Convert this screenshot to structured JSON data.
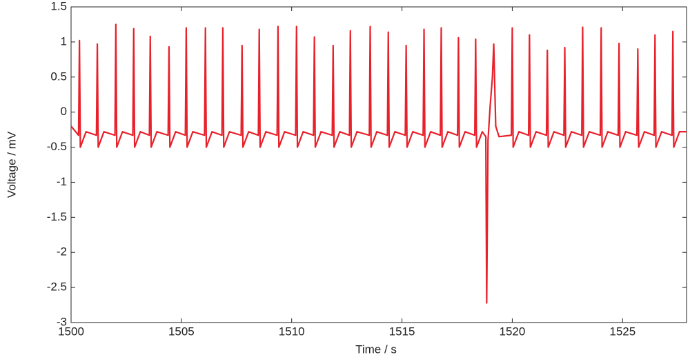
{
  "chart_data": {
    "type": "line",
    "x_label": "Time / s",
    "y_label": "Voltage / mV",
    "color": "#e8202a",
    "xlim": [
      1500,
      1527.9
    ],
    "ylim": [
      -3,
      1.5
    ],
    "xticks": [
      1500,
      1505,
      1510,
      1515,
      1520,
      1525
    ],
    "yticks": [
      1.5,
      1,
      0.5,
      0,
      -0.5,
      -1,
      -1.5,
      -2,
      -2.5,
      -3
    ],
    "x": [
      1500,
      1500.34,
      1500.38,
      1500.42,
      1500.68,
      1501.15,
      1501.19,
      1501.23,
      1501.49,
      1501.99,
      1502.03,
      1502.07,
      1502.33,
      1502.8,
      1502.84,
      1502.88,
      1503.14,
      1503.55,
      1503.59,
      1503.63,
      1503.89,
      1504.4,
      1504.44,
      1504.48,
      1504.74,
      1505.18,
      1505.22,
      1505.26,
      1505.52,
      1506.05,
      1506.09,
      1506.13,
      1506.39,
      1506.84,
      1506.88,
      1506.92,
      1507.18,
      1507.71,
      1507.75,
      1507.79,
      1508.05,
      1508.49,
      1508.53,
      1508.57,
      1508.83,
      1509.34,
      1509.38,
      1509.42,
      1509.68,
      1510.18,
      1510.22,
      1510.26,
      1510.52,
      1510.99,
      1511.03,
      1511.07,
      1511.33,
      1511.84,
      1511.88,
      1511.92,
      1512.18,
      1512.62,
      1512.66,
      1512.7,
      1512.96,
      1513.52,
      1513.56,
      1513.6,
      1513.86,
      1514.34,
      1514.38,
      1514.42,
      1514.68,
      1515.15,
      1515.19,
      1515.23,
      1515.49,
      1515.96,
      1516,
      1516.04,
      1516.3,
      1516.74,
      1516.78,
      1516.82,
      1517.08,
      1517.52,
      1517.56,
      1517.6,
      1517.86,
      1518.3,
      1518.34,
      1518.38,
      1518.64,
      1518.8,
      1518.84,
      1518.9,
      1519,
      1519.1,
      1519.16,
      1519.25,
      1519.4,
      1519.96,
      1520,
      1520.04,
      1520.3,
      1520.74,
      1520.78,
      1520.82,
      1521.08,
      1521.55,
      1521.59,
      1521.63,
      1521.89,
      1522.34,
      1522.38,
      1522.42,
      1522.68,
      1523.15,
      1523.19,
      1523.23,
      1523.49,
      1523.99,
      1524.03,
      1524.07,
      1524.33,
      1524.8,
      1524.84,
      1524.88,
      1525.14,
      1525.65,
      1525.69,
      1525.73,
      1525.99,
      1526.43,
      1526.47,
      1526.51,
      1526.77,
      1527.24,
      1527.28,
      1527.32,
      1527.58,
      1527.9
    ],
    "values": [
      -0.2,
      -0.33,
      1.02,
      -0.5,
      -0.28,
      -0.33,
      0.97,
      -0.5,
      -0.28,
      -0.33,
      1.25,
      -0.5,
      -0.28,
      -0.33,
      1.19,
      -0.5,
      -0.28,
      -0.33,
      1.08,
      -0.5,
      -0.28,
      -0.33,
      0.93,
      -0.5,
      -0.28,
      -0.33,
      1.2,
      -0.5,
      -0.28,
      -0.33,
      1.2,
      -0.5,
      -0.28,
      -0.33,
      1.2,
      -0.5,
      -0.28,
      -0.33,
      0.95,
      -0.5,
      -0.28,
      -0.33,
      1.18,
      -0.5,
      -0.28,
      -0.33,
      1.22,
      -0.5,
      -0.28,
      -0.33,
      1.22,
      -0.5,
      -0.28,
      -0.33,
      1.07,
      -0.5,
      -0.28,
      -0.33,
      0.95,
      -0.5,
      -0.28,
      -0.33,
      1.16,
      -0.5,
      -0.28,
      -0.33,
      1.22,
      -0.5,
      -0.28,
      -0.33,
      1.14,
      -0.5,
      -0.28,
      -0.33,
      0.95,
      -0.5,
      -0.28,
      -0.33,
      1.18,
      -0.5,
      -0.28,
      -0.33,
      1.2,
      -0.5,
      -0.28,
      -0.33,
      1.06,
      -0.5,
      -0.28,
      -0.33,
      1.04,
      -0.5,
      -0.28,
      -0.35,
      -2.72,
      -0.4,
      0.1,
      0.5,
      0.97,
      -0.2,
      -0.35,
      -0.33,
      1.2,
      -0.5,
      -0.28,
      -0.33,
      1.1,
      -0.5,
      -0.28,
      -0.33,
      0.88,
      -0.5,
      -0.28,
      -0.33,
      0.92,
      -0.5,
      -0.28,
      -0.33,
      1.21,
      -0.5,
      -0.28,
      -0.33,
      1.2,
      -0.5,
      -0.28,
      -0.33,
      0.98,
      -0.5,
      -0.28,
      -0.33,
      0.9,
      -0.5,
      -0.28,
      -0.33,
      1.1,
      -0.5,
      -0.28,
      -0.33,
      1.15,
      -0.5,
      -0.28,
      -0.28
    ]
  }
}
